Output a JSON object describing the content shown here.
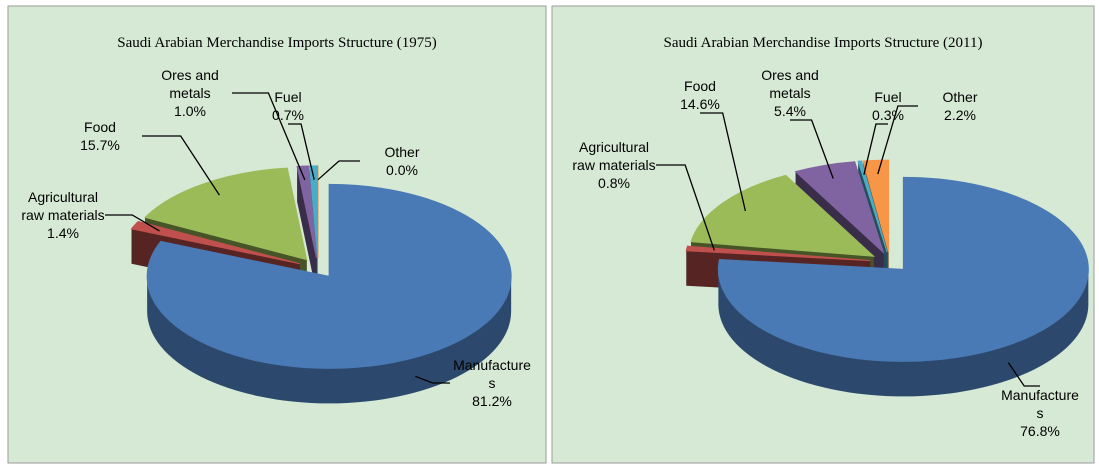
{
  "chart_data": [
    {
      "type": "pie",
      "title": "Saudi Arabian Merchandise Imports Structure (1975)",
      "categories": [
        "Manufactures",
        "Agricultural raw materials",
        "Food",
        "Ores and metals",
        "Fuel",
        "Other"
      ],
      "values": [
        81.2,
        1.4,
        15.7,
        1.0,
        0.7,
        0.0
      ],
      "value_labels": [
        "81.2%",
        "1.4%",
        "15.7%",
        "1.0%",
        "0.7%",
        "0.0%"
      ],
      "colors": [
        "#4a7ab5",
        "#c0504d",
        "#9bbb59",
        "#8064a2",
        "#4bacc6",
        "#f79646"
      ]
    },
    {
      "type": "pie",
      "title": "Saudi Arabian Merchandise Imports Structure (2011)",
      "categories": [
        "Manufactures",
        "Agricultural raw materials",
        "Food",
        "Ores and metals",
        "Fuel",
        "Other"
      ],
      "values": [
        76.8,
        0.8,
        14.6,
        5.4,
        0.3,
        2.2
      ],
      "value_labels": [
        "76.8%",
        "0.8%",
        "14.6%",
        "5.4%",
        "0.3%",
        "2.2%"
      ],
      "colors": [
        "#4a7ab5",
        "#c0504d",
        "#9bbb59",
        "#8064a2",
        "#4bacc6",
        "#f79646"
      ]
    }
  ]
}
